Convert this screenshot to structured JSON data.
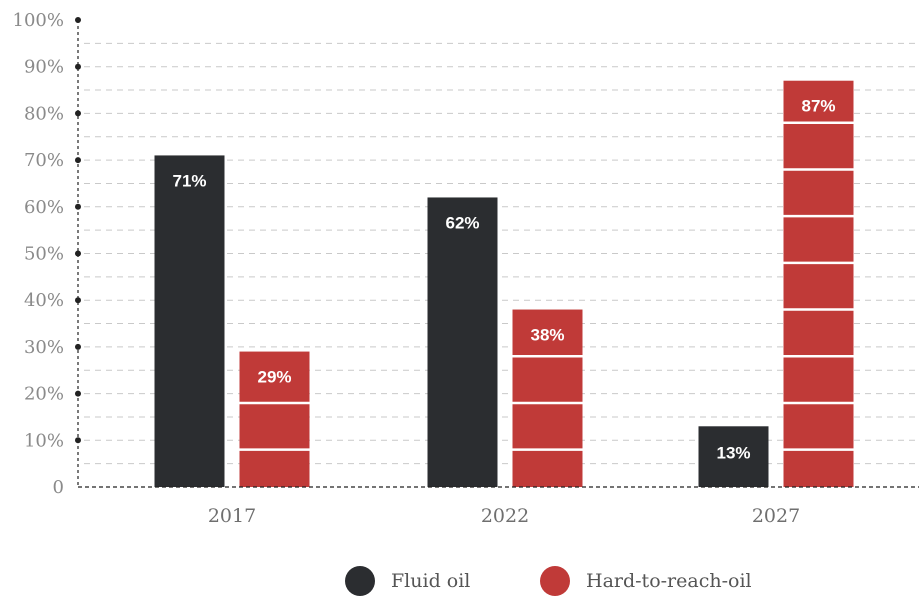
{
  "chart_data": {
    "type": "bar",
    "categories": [
      "2017",
      "2022",
      "2027"
    ],
    "series": [
      {
        "name": "Fluid oil",
        "values": [
          71,
          62,
          13
        ],
        "labels": [
          "71%",
          "62%",
          "13%"
        ],
        "color": "#2b2d30"
      },
      {
        "name": "Hard-to-reach-oil",
        "values": [
          29,
          38,
          87
        ],
        "labels": [
          "29%",
          "38%",
          "87%"
        ],
        "color": "#c03a38"
      }
    ],
    "y_ticks": [
      "0",
      "10%",
      "20%",
      "30%",
      "40%",
      "50%",
      "60%",
      "70%",
      "80%",
      "90%",
      "100%"
    ],
    "ylim": [
      0,
      100
    ],
    "grid": true,
    "legend_position": "bottom-center"
  }
}
